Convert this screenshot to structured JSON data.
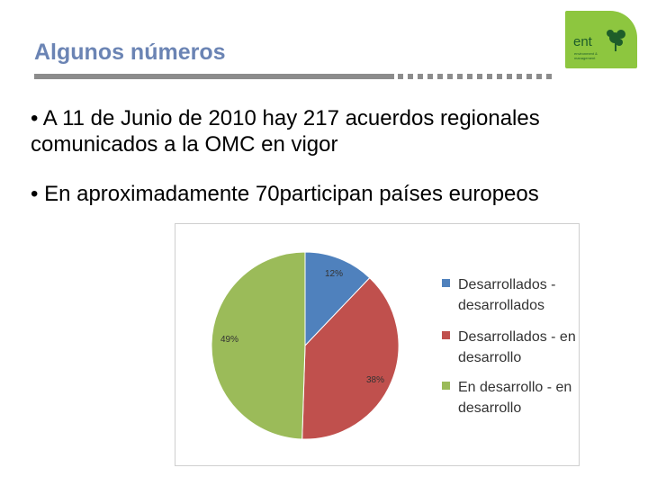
{
  "slide": {
    "title": "Algunos números",
    "bullets": [
      "• A 11 de Junio de 2010 hay 217 acuerdos regionales  comunicados a la OMC en vigor",
      "• En aproximadamente 70participan países europeos"
    ]
  },
  "logo": {
    "text": "ent",
    "subtext": "environment & management",
    "color": "#8dc63f",
    "icon": "tree-icon"
  },
  "chart_data": {
    "type": "pie",
    "slices": [
      {
        "label": "Desarrollados - desarrollados",
        "value": 12,
        "display": "12%",
        "color": "#4f81bd"
      },
      {
        "label": "Desarrollados - en desarrollo",
        "value": 38,
        "display": "38%",
        "color": "#c0504d"
      },
      {
        "label": "En desarrollo - en desarrollo",
        "value": 49,
        "display": "49%",
        "color": "#9bbb59"
      }
    ],
    "legend_position": "right"
  }
}
